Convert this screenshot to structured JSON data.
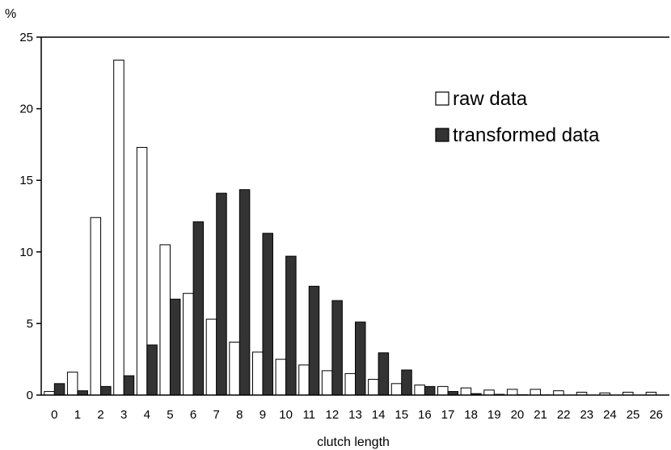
{
  "chart_data": {
    "type": "bar",
    "title": "",
    "xlabel": "clutch length",
    "ylabel": "%",
    "ylim": [
      0,
      25
    ],
    "yticks": [
      0,
      5,
      10,
      15,
      20,
      25
    ],
    "grid": false,
    "legend_position": "top-right",
    "categories": [
      "0",
      "1",
      "2",
      "3",
      "4",
      "5",
      "6",
      "7",
      "8",
      "9",
      "10",
      "11",
      "12",
      "13",
      "14",
      "15",
      "16",
      "17",
      "18",
      "19",
      "20",
      "21",
      "22",
      "23",
      "24",
      "25",
      "26"
    ],
    "series": [
      {
        "name": "raw data",
        "color": "#ffffff",
        "values": [
          0.25,
          1.6,
          12.4,
          23.4,
          17.3,
          10.5,
          7.1,
          5.3,
          3.7,
          3.0,
          2.5,
          2.1,
          1.7,
          1.5,
          1.1,
          0.8,
          0.7,
          0.6,
          0.5,
          0.35,
          0.4,
          0.4,
          0.3,
          0.2,
          0.15,
          0.2,
          0.2
        ]
      },
      {
        "name": "transformed data",
        "color": "#333333",
        "values": [
          0.8,
          0.3,
          0.6,
          1.35,
          3.5,
          6.7,
          12.1,
          14.1,
          14.35,
          11.3,
          9.7,
          7.6,
          6.6,
          5.1,
          2.95,
          1.75,
          0.6,
          0.25,
          0.1,
          0.05,
          0.02,
          0.01,
          0,
          0,
          0,
          0,
          0
        ]
      }
    ]
  }
}
